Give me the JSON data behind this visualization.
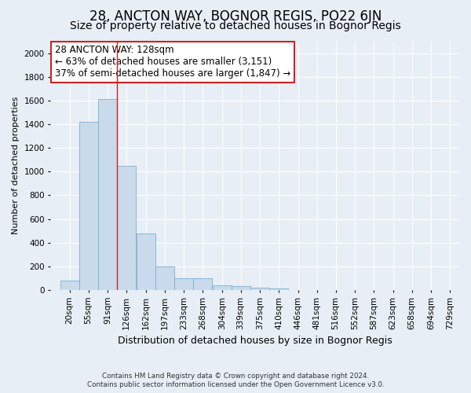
{
  "title": "28, ANCTON WAY, BOGNOR REGIS, PO22 6JN",
  "subtitle": "Size of property relative to detached houses in Bognor Regis",
  "xlabel": "Distribution of detached houses by size in Bognor Regis",
  "ylabel": "Number of detached properties",
  "footer_line1": "Contains HM Land Registry data © Crown copyright and database right 2024.",
  "footer_line2": "Contains public sector information licensed under the Open Government Licence v3.0.",
  "annotation_line1": "28 ANCTON WAY: 128sqm",
  "annotation_line2": "← 63% of detached houses are smaller (3,151)",
  "annotation_line3": "37% of semi-detached houses are larger (1,847) →",
  "bar_color": "#c9daea",
  "bar_edge_color": "#7aafd4",
  "red_line_x": 126,
  "bins_left": [
    2,
    37,
    73,
    108,
    144,
    179,
    215,
    250,
    286,
    321,
    357,
    392,
    428,
    463,
    498,
    534,
    569,
    605,
    640,
    676,
    711
  ],
  "bin_labels": [
    "20sqm",
    "55sqm",
    "91sqm",
    "126sqm",
    "162sqm",
    "197sqm",
    "233sqm",
    "268sqm",
    "304sqm",
    "339sqm",
    "375sqm",
    "410sqm",
    "446sqm",
    "481sqm",
    "516sqm",
    "552sqm",
    "587sqm",
    "623sqm",
    "658sqm",
    "694sqm",
    "729sqm"
  ],
  "heights": [
    80,
    1420,
    1610,
    1050,
    480,
    200,
    100,
    100,
    40,
    30,
    20,
    15,
    0,
    0,
    0,
    0,
    0,
    0,
    0,
    0,
    0
  ],
  "bin_width": 35,
  "ylim": [
    0,
    2100
  ],
  "yticks": [
    0,
    200,
    400,
    600,
    800,
    1000,
    1200,
    1400,
    1600,
    1800,
    2000
  ],
  "xlim_min": -16,
  "xlim_max": 746,
  "background_color": "#e8eef5",
  "grid_color": "#ffffff",
  "title_fontsize": 12,
  "subtitle_fontsize": 10,
  "ylabel_fontsize": 8,
  "xlabel_fontsize": 9,
  "tick_fontsize": 7.5,
  "annotation_box_color": "#ffffff",
  "annotation_box_edge": "#cc2222",
  "annotation_fontsize": 8.5
}
